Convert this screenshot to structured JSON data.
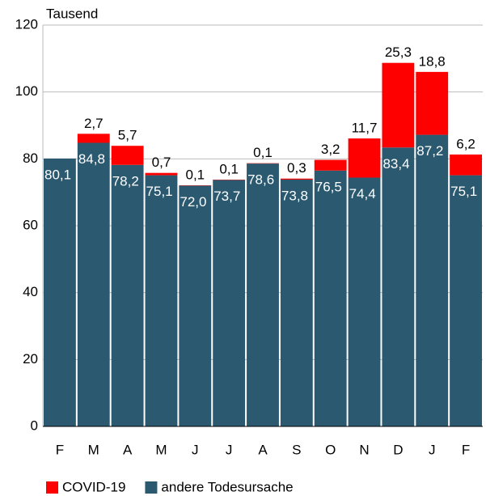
{
  "chart_data": {
    "type": "stacked_bar",
    "y_label": "Tausend",
    "categories": [
      "F",
      "M",
      "A",
      "M",
      "J",
      "J",
      "A",
      "S",
      "O",
      "N",
      "D",
      "J",
      "F"
    ],
    "series": [
      {
        "name": "COVID-19",
        "color": "#ff0000",
        "values": [
          null,
          2.7,
          5.7,
          0.7,
          0.1,
          0.1,
          0.1,
          0.3,
          3.2,
          11.7,
          25.3,
          18.8,
          6.2
        ],
        "value_labels": [
          null,
          "2,7",
          "5,7",
          "0,7",
          "0,1",
          "0,1",
          "0,1",
          "0,3",
          "3,2",
          "11,7",
          "25,3",
          "18,8",
          "6,2"
        ]
      },
      {
        "name": "andere Todesursache",
        "color": "#2b5970",
        "values": [
          80.1,
          84.8,
          78.2,
          75.1,
          72.0,
          73.7,
          78.6,
          73.8,
          76.5,
          74.4,
          83.4,
          87.2,
          75.1
        ],
        "value_labels": [
          "80,1",
          "84,8",
          "78,2",
          "75,1",
          "72,0",
          "73,7",
          "78,6",
          "73,8",
          "76,5",
          "74,4",
          "83,4",
          "87,2",
          "75,1"
        ]
      }
    ],
    "ylim": [
      0,
      120
    ],
    "yticks": [
      0,
      20,
      40,
      60,
      80,
      100,
      120
    ],
    "grid": true
  }
}
